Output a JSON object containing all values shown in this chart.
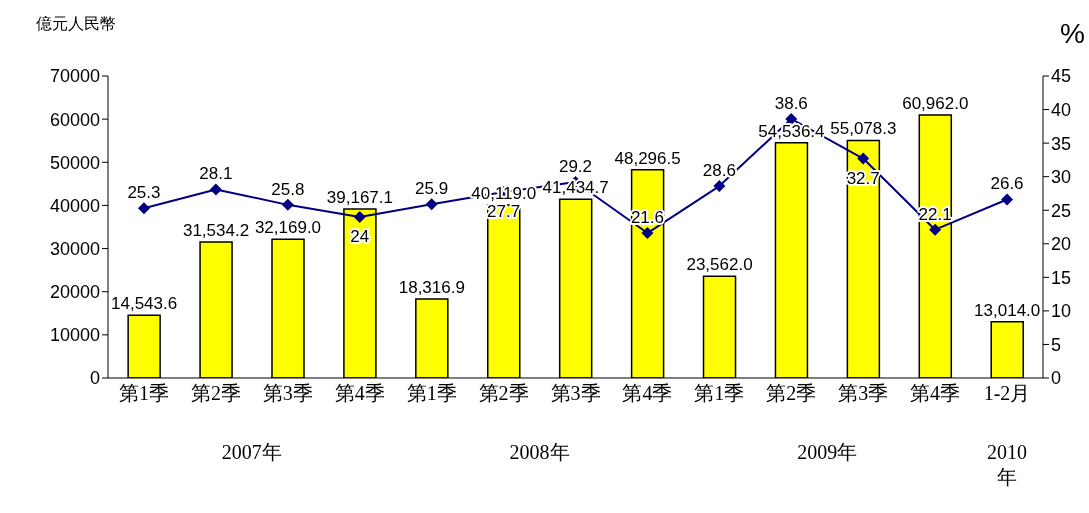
{
  "chart_data": {
    "type": "bar",
    "ylabel": "億元人民幣",
    "y2label": "%",
    "categories": [
      "第1季",
      "第2季",
      "第3季",
      "第4季",
      "第1季",
      "第2季",
      "第3季",
      "第4季",
      "第1季",
      "第2季",
      "第3季",
      "第4季",
      "1-2月"
    ],
    "series": [
      {
        "color": "#ffff00",
        "values": [
          14543.6,
          31534.2,
          32169.0,
          39167.1,
          18316.9,
          40119.0,
          41434.7,
          48296.5,
          23562.0,
          54536.4,
          55078.3,
          60962.0,
          13014.0
        ],
        "value_labels": [
          "14,543.6",
          "31,534.2",
          "32,169.0",
          "39,167.1",
          "18,316.9",
          "40,119.0",
          "41,434.7",
          "48,296.5",
          "23,562.0",
          "54,536.4",
          "55,078.3",
          "60,962.0",
          "13,014.0"
        ]
      },
      {
        "type": "line",
        "axis": "y2",
        "color": "#000080",
        "marker": "diamond",
        "values": [
          25.3,
          28.1,
          25.8,
          24,
          25.9,
          27.7,
          29.2,
          21.6,
          28.6,
          38.6,
          32.7,
          22.1,
          26.6
        ],
        "value_labels": [
          "25.3",
          "28.1",
          "25.8",
          "24",
          "25.9",
          "27.7",
          "29.2",
          "21.6",
          "28.6",
          "38.6",
          "32.7",
          "22.1",
          "26.6"
        ]
      }
    ],
    "ylim": [
      0,
      70000
    ],
    "yticks": [
      0,
      10000,
      20000,
      30000,
      40000,
      50000,
      60000,
      70000
    ],
    "y2lim": [
      0,
      45
    ],
    "y2ticks": [
      0,
      5,
      10,
      15,
      20,
      25,
      30,
      35,
      40,
      45
    ],
    "grid": false,
    "legend": false,
    "annotations": [
      "2007年",
      "2008年",
      "2009年",
      "2010年"
    ]
  }
}
